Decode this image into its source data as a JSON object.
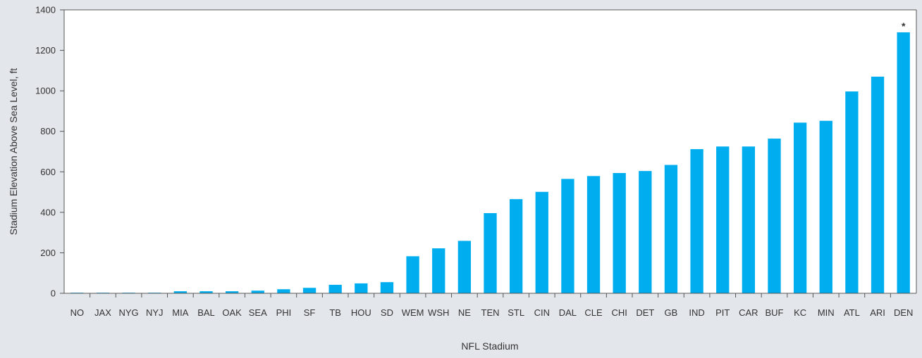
{
  "chart_data": {
    "type": "bar",
    "xlabel": "NFL Stadium",
    "ylabel": "Stadium Elevation Above Sea Level, ft",
    "ylim": [
      0,
      1400
    ],
    "yticks": [
      "0",
      "200",
      "400",
      "600",
      "800",
      "1000",
      "1200",
      "1400"
    ],
    "ytick_values": [
      0,
      200,
      400,
      600,
      800,
      1000,
      1200,
      1400
    ],
    "grid": false,
    "legend": "none",
    "categories": [
      "NO",
      "JAX",
      "NYG",
      "NYJ",
      "MIA",
      "BAL",
      "OAK",
      "SEA",
      "PHI",
      "SF",
      "TB",
      "HOU",
      "SD",
      "WEM",
      "WSH",
      "NE",
      "TEN",
      "STL",
      "CIN",
      "DAL",
      "CLE",
      "CHI",
      "DET",
      "GB",
      "IND",
      "PIT",
      "CAR",
      "BUF",
      "KC",
      "MIN",
      "ATL",
      "ARI",
      "DEN"
    ],
    "values": [
      3,
      3,
      3,
      3,
      10,
      10,
      10,
      13,
      20,
      27,
      42,
      49,
      55,
      183,
      222,
      259,
      396,
      465,
      501,
      565,
      579,
      594,
      604,
      634,
      712,
      725,
      725,
      764,
      843,
      852,
      997,
      1070,
      1289
    ],
    "bar_color": "#00aeef",
    "annotations": [
      {
        "category": "DEN",
        "text": "*"
      }
    ]
  }
}
